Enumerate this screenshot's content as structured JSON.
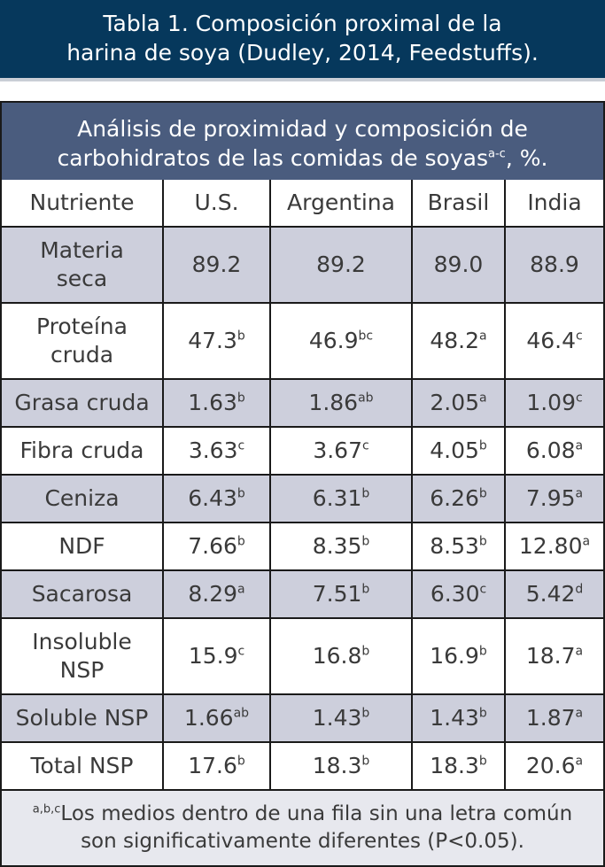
{
  "title": {
    "line1": "Tabla 1. Composición proximal de la",
    "line2": "harina de soya (Dudley, 2014, Feedstuffs)."
  },
  "table_header": {
    "line1": "Análisis de proximidad y composición de",
    "line2": "carbohidratos de las comidas de soyas",
    "line2_sup": "a-c",
    "line2_suffix": ", %."
  },
  "columns": [
    "Nutriente",
    "U.S.",
    "Argentina",
    "Brasil",
    "India"
  ],
  "rows": [
    {
      "n1": "Materia",
      "n2": "seca",
      "cells": [
        {
          "v": "89.2",
          "s": ""
        },
        {
          "v": "89.2",
          "s": ""
        },
        {
          "v": "89.0",
          "s": ""
        },
        {
          "v": "88.9",
          "s": ""
        }
      ]
    },
    {
      "n1": "Proteína",
      "n2": "cruda",
      "cells": [
        {
          "v": "47.3",
          "s": "b"
        },
        {
          "v": "46.9",
          "s": "bc"
        },
        {
          "v": "48.2",
          "s": "a"
        },
        {
          "v": "46.4",
          "s": "c"
        }
      ]
    },
    {
      "n1": "Grasa cruda",
      "n2": "",
      "cells": [
        {
          "v": "1.63",
          "s": "b"
        },
        {
          "v": "1.86",
          "s": "ab"
        },
        {
          "v": "2.05",
          "s": "a"
        },
        {
          "v": "1.09",
          "s": "c"
        }
      ]
    },
    {
      "n1": "Fibra cruda",
      "n2": "",
      "cells": [
        {
          "v": "3.63",
          "s": "c"
        },
        {
          "v": "3.67",
          "s": "c"
        },
        {
          "v": "4.05",
          "s": "b"
        },
        {
          "v": "6.08",
          "s": "a"
        }
      ]
    },
    {
      "n1": "Ceniza",
      "n2": "",
      "cells": [
        {
          "v": "6.43",
          "s": "b"
        },
        {
          "v": "6.31",
          "s": "b"
        },
        {
          "v": "6.26",
          "s": "b"
        },
        {
          "v": "7.95",
          "s": "a"
        }
      ]
    },
    {
      "n1": "NDF",
      "n2": "",
      "cells": [
        {
          "v": "7.66",
          "s": "b"
        },
        {
          "v": "8.35",
          "s": "b"
        },
        {
          "v": "8.53",
          "s": "b"
        },
        {
          "v": "12.80",
          "s": "a"
        }
      ]
    },
    {
      "n1": "Sacarosa",
      "n2": "",
      "cells": [
        {
          "v": "8.29",
          "s": "a"
        },
        {
          "v": "7.51",
          "s": "b"
        },
        {
          "v": "6.30",
          "s": "c"
        },
        {
          "v": "5.42",
          "s": "d"
        }
      ]
    },
    {
      "n1": "Insoluble",
      "n2": "NSP",
      "cells": [
        {
          "v": "15.9",
          "s": "c"
        },
        {
          "v": "16.8",
          "s": "b"
        },
        {
          "v": "16.9",
          "s": "b"
        },
        {
          "v": "18.7",
          "s": "a"
        }
      ]
    },
    {
      "n1": "Soluble NSP",
      "n2": "",
      "cells": [
        {
          "v": "1.66",
          "s": "ab"
        },
        {
          "v": "1.43",
          "s": "b"
        },
        {
          "v": "1.43",
          "s": "b"
        },
        {
          "v": "1.87",
          "s": "a"
        }
      ]
    },
    {
      "n1": "Total NSP",
      "n2": "",
      "cells": [
        {
          "v": "17.6",
          "s": "b"
        },
        {
          "v": "18.3",
          "s": "b"
        },
        {
          "v": "18.3",
          "s": "b"
        },
        {
          "v": "20.6",
          "s": "a"
        }
      ]
    }
  ],
  "footnote": {
    "sup": "a,b,c",
    "line1": "Los medios dentro de una fila sin una letra común",
    "line2": "son significativamente diferentes (P<0.05)."
  }
}
